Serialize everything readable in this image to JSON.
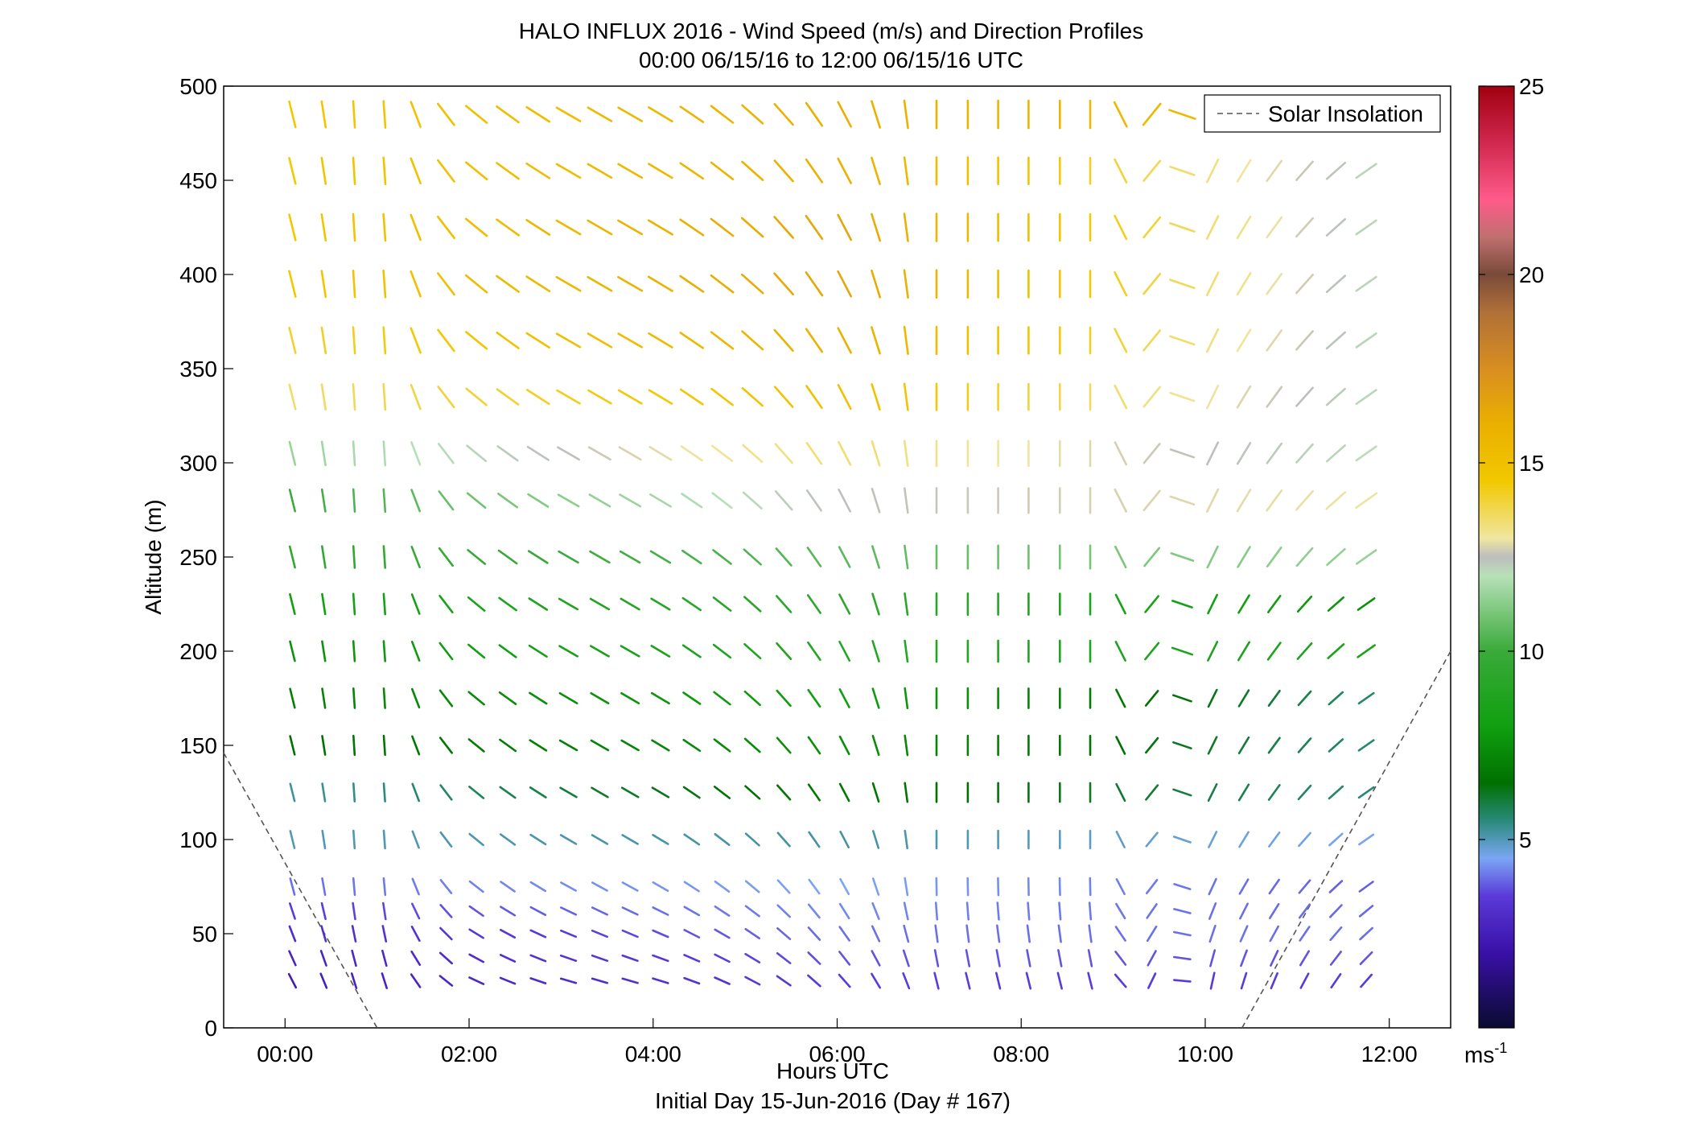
{
  "chart_data": {
    "type": "wind_barb_profile",
    "title": "HALO INFLUX 2016 - Wind Speed (m/s) and Direction Profiles",
    "subtitle": "00:00 06/15/16 to 12:00 06/15/16  UTC",
    "xlabel": "Hours UTC",
    "xlabel2": "Initial Day 15-Jun-2016 (Day # 167)",
    "ylabel": "Altitude (m)",
    "xlim_hours": [
      -0.667,
      12.667
    ],
    "ylim": [
      0,
      500
    ],
    "x_ticks": [
      {
        "value": 0,
        "label": "00:00"
      },
      {
        "value": 2,
        "label": "02:00"
      },
      {
        "value": 4,
        "label": "04:00"
      },
      {
        "value": 6,
        "label": "06:00"
      },
      {
        "value": 8,
        "label": "08:00"
      },
      {
        "value": 10,
        "label": "10:00"
      },
      {
        "value": 12,
        "label": "12:00"
      }
    ],
    "y_ticks": [
      0,
      50,
      100,
      150,
      200,
      250,
      300,
      350,
      400,
      450,
      500
    ],
    "legend": {
      "position": "top-right",
      "entries": [
        {
          "name": "Solar Insolation",
          "style": "dashed",
          "color": "#555555"
        }
      ]
    },
    "solar_insolation": {
      "left": [
        [
          -0.667,
          146
        ],
        [
          1.0,
          0
        ]
      ],
      "right": [
        [
          10.4,
          0
        ],
        [
          12.667,
          200
        ]
      ]
    },
    "colorbar": {
      "min": 0,
      "max": 25,
      "ticks": [
        5,
        10,
        15,
        20,
        25
      ],
      "unit_label": "ms",
      "unit_exponent": "-1",
      "stops": [
        {
          "v": 0,
          "color": "#0a0a30"
        },
        {
          "v": 2,
          "color": "#3a10a8"
        },
        {
          "v": 3.5,
          "color": "#5a3ad8"
        },
        {
          "v": 4.5,
          "color": "#7aa6f4"
        },
        {
          "v": 5.5,
          "color": "#2a8a7a"
        },
        {
          "v": 6.5,
          "color": "#007000"
        },
        {
          "v": 8,
          "color": "#10a010"
        },
        {
          "v": 10,
          "color": "#3aaa3a"
        },
        {
          "v": 12,
          "color": "#b8e0b8"
        },
        {
          "v": 12.5,
          "color": "#bdbdbd"
        },
        {
          "v": 13,
          "color": "#f0e6a0"
        },
        {
          "v": 14.5,
          "color": "#f2c800"
        },
        {
          "v": 16,
          "color": "#eab000"
        },
        {
          "v": 17.5,
          "color": "#d88e20"
        },
        {
          "v": 19,
          "color": "#b07038"
        },
        {
          "v": 20,
          "color": "#7a4a3a"
        },
        {
          "v": 21,
          "color": "#c07070"
        },
        {
          "v": 22,
          "color": "#ff5a8a"
        },
        {
          "v": 23.5,
          "color": "#d0284e"
        },
        {
          "v": 25,
          "color": "#a00010"
        }
      ]
    },
    "times_hours": [
      0.08,
      0.42,
      0.75,
      1.08,
      1.42,
      1.75,
      2.08,
      2.42,
      2.75,
      3.08,
      3.42,
      3.75,
      4.08,
      4.42,
      4.75,
      5.08,
      5.42,
      5.75,
      6.08,
      6.42,
      6.75,
      7.08,
      7.42,
      7.75,
      8.08,
      8.42,
      8.75,
      9.08,
      9.42,
      9.75,
      10.08,
      10.42,
      10.75,
      11.08,
      11.42,
      11.75
    ],
    "altitudes_m": [
      25,
      37,
      50,
      62,
      75,
      100,
      125,
      150,
      175,
      200,
      225,
      250,
      280,
      305,
      335,
      365,
      395,
      425,
      455,
      485
    ],
    "direction_key_deg": [
      [
        0,
        345
      ],
      [
        1,
        360
      ],
      [
        2,
        310
      ],
      [
        3,
        300
      ],
      [
        4,
        300
      ],
      [
        5,
        310
      ],
      [
        6,
        330
      ],
      [
        7,
        360
      ],
      [
        8,
        360
      ],
      [
        9,
        360
      ],
      [
        10,
        25
      ],
      [
        11,
        40
      ],
      [
        12,
        60
      ],
      [
        13,
        70
      ],
      [
        14,
        70
      ],
      [
        15,
        65
      ],
      [
        16,
        60
      ],
      [
        17,
        75
      ]
    ],
    "speed_key_ms": [
      [
        25,
        2.5,
        3.5,
        3.5
      ],
      [
        50,
        3.0,
        4.0,
        4.0
      ],
      [
        75,
        4.0,
        4.5,
        3.8
      ],
      [
        100,
        5.0,
        5.2,
        4.5
      ],
      [
        125,
        5.2,
        6.8,
        5.5
      ],
      [
        150,
        6.5,
        7.5,
        5.5
      ],
      [
        175,
        7.0,
        8.0,
        5.5
      ],
      [
        200,
        7.5,
        9.0,
        8.5
      ],
      [
        225,
        8.0,
        9.5,
        7.5
      ],
      [
        250,
        9.5,
        10.5,
        11.5
      ],
      [
        280,
        10.0,
        12.5,
        13.0
      ],
      [
        305,
        11.5,
        13.5,
        12.0
      ],
      [
        335,
        13.5,
        15.0,
        12.0
      ],
      [
        365,
        14.0,
        16.0,
        12.0
      ],
      [
        395,
        14.5,
        16.5,
        12.0
      ],
      [
        425,
        14.5,
        16.5,
        12.0
      ],
      [
        455,
        14.5,
        16.0,
        12.0
      ],
      [
        485,
        14.5,
        16.0,
        15.0
      ]
    ]
  }
}
